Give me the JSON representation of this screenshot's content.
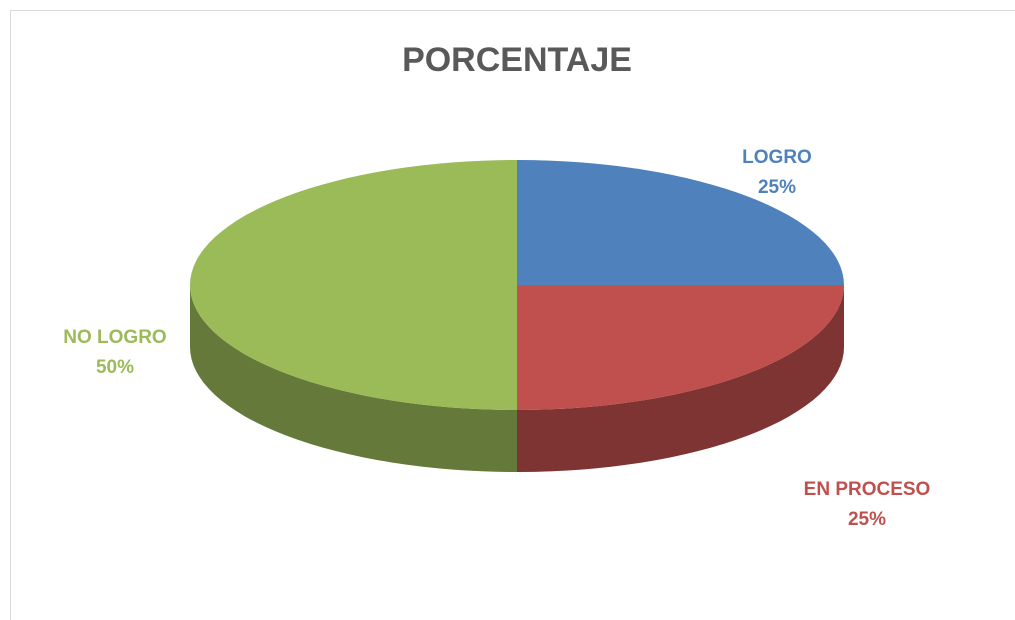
{
  "chart_data": {
    "type": "pie",
    "title": "PORCENTAJE",
    "categories": [
      "LOGRO",
      "EN PROCESO",
      "NO LOGRO"
    ],
    "values": [
      25,
      25,
      50
    ],
    "value_labels": [
      "25%",
      "25%",
      "50%"
    ],
    "colors": [
      "#4f81bd",
      "#c0504d",
      "#9bbb59"
    ]
  }
}
